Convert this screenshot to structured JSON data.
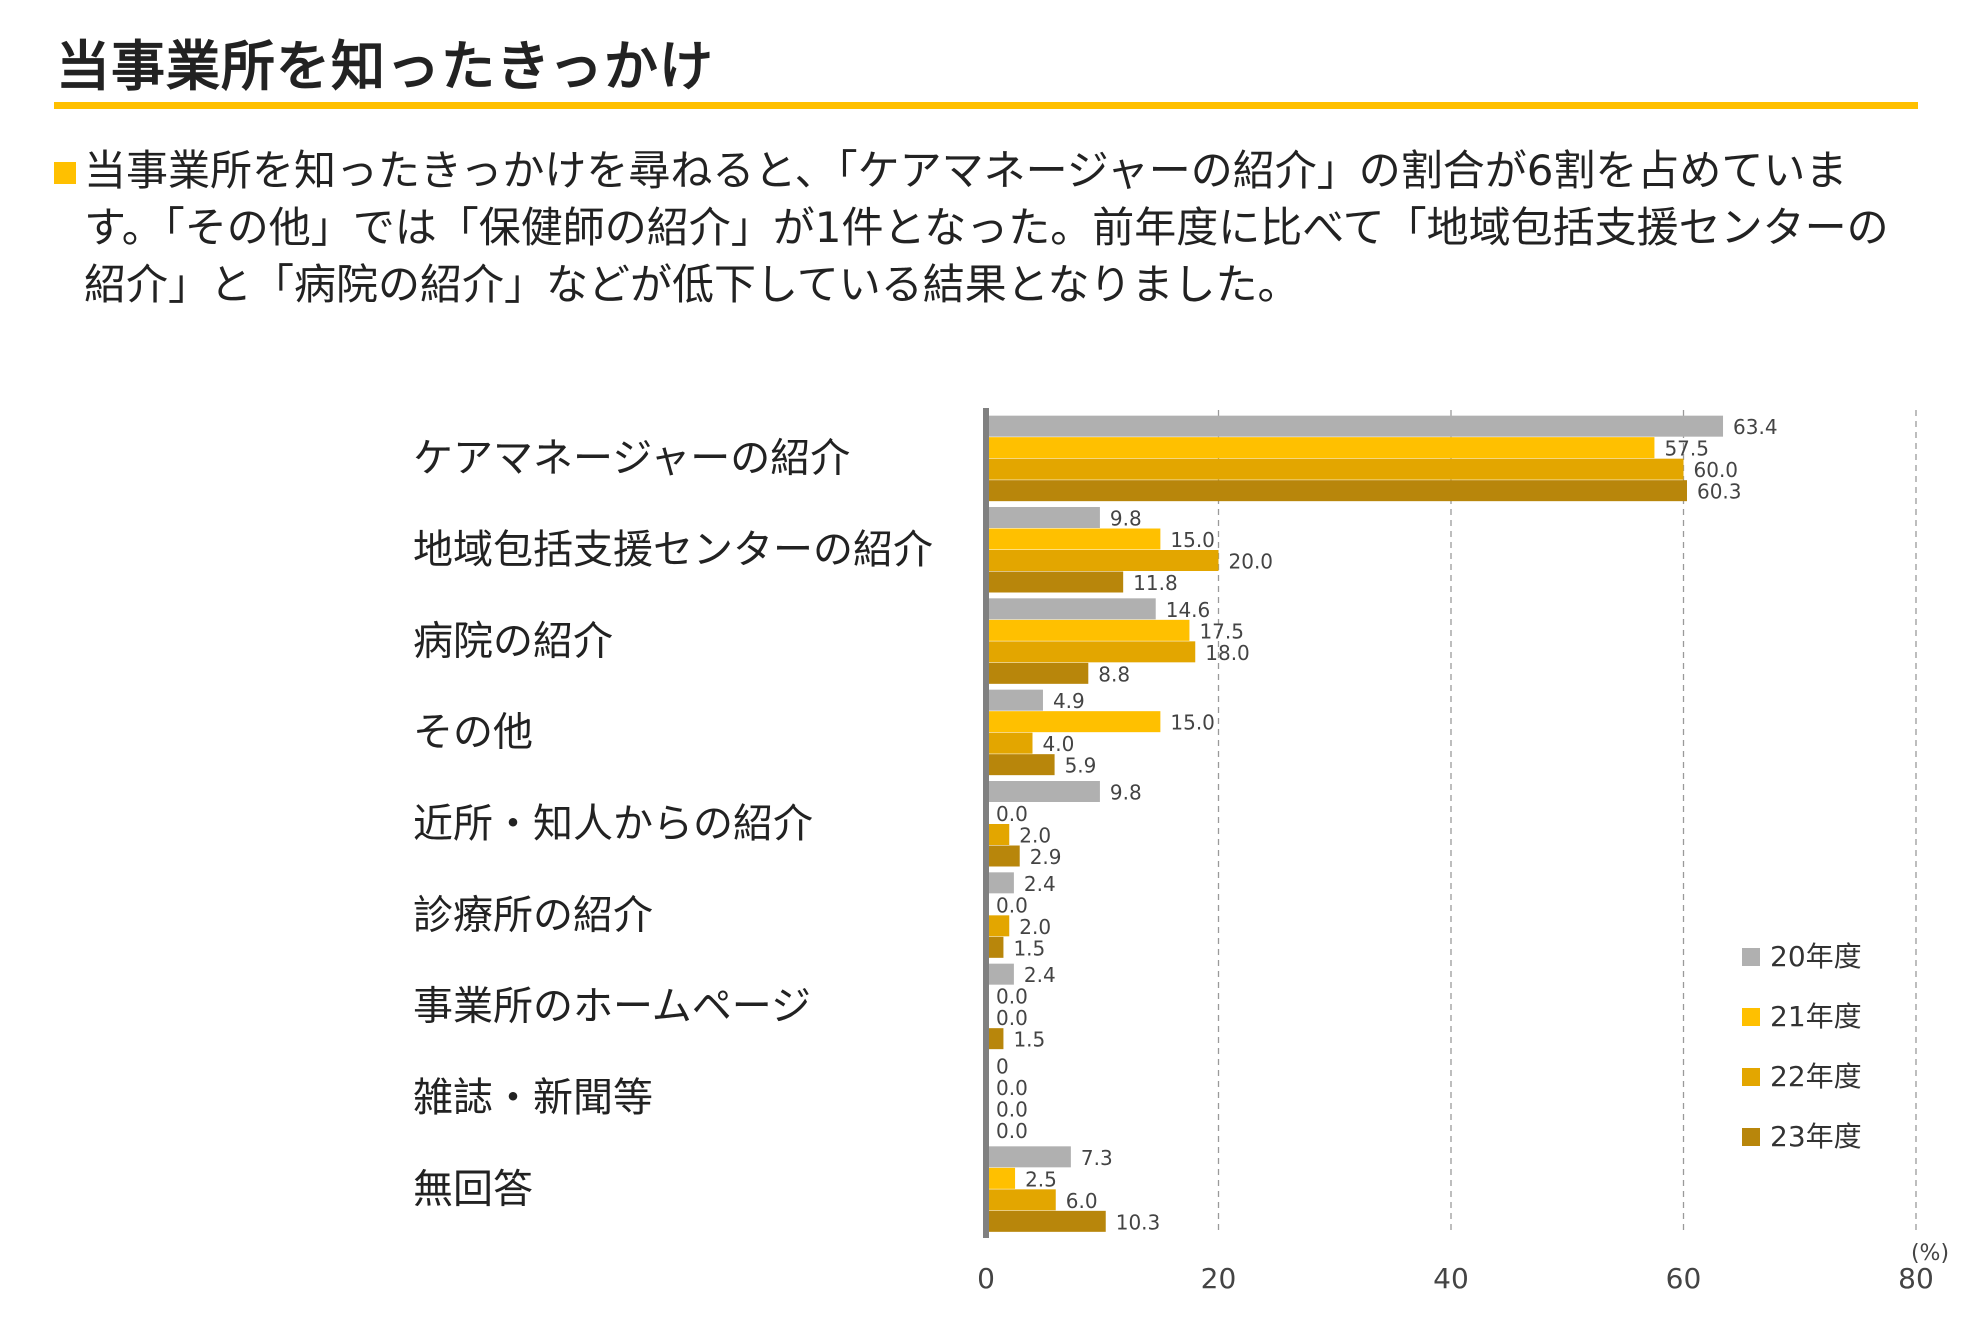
{
  "page": {
    "title": "当事業所を知ったきっかけ",
    "summary": "当事業所を知ったきっかけを尋ねると、「ケアマネージャーの紹介」の割合が6割を占めています。「その他」では「保健師の紹介」が1件となった。前年度に比べて「地域包括支援センターの紹介」と「病院の紹介」などが低下している結果となりました。",
    "accent_color": "#FFC000"
  },
  "chart_data": {
    "type": "bar",
    "orientation": "horizontal",
    "unit": "(%)",
    "xlim": [
      0,
      80
    ],
    "x_ticks": [
      "0",
      "20",
      "40",
      "60",
      "80"
    ],
    "grid": "vertical dashed",
    "legend_position": "bottom-right",
    "categories": [
      "ケアマネージャーの紹介",
      "地域包括支援センターの紹介",
      "病院の紹介",
      "その他",
      "近所・知人からの紹介",
      "診療所の紹介",
      "事業所のホームページ",
      "雑誌・新聞等",
      "無回答"
    ],
    "series": [
      {
        "name": "20年度",
        "color": "#B0B0B0",
        "values": [
          63.4,
          9.8,
          14.6,
          4.9,
          9.8,
          2.4,
          2.4,
          0,
          7.3
        ],
        "labels": [
          "63.4",
          "9.8",
          "14.6",
          "4.9",
          "9.8",
          "2.4",
          "2.4",
          "0",
          "7.3"
        ]
      },
      {
        "name": "21年度",
        "color": "#FFC000",
        "values": [
          57.5,
          15.0,
          17.5,
          15.0,
          0.0,
          0.0,
          0.0,
          0.0,
          2.5
        ],
        "labels": [
          "57.5",
          "15.0",
          "17.5",
          "15.0",
          "0.0",
          "0.0",
          "0.0",
          "0.0",
          "2.5"
        ]
      },
      {
        "name": "22年度",
        "color": "#E3A600",
        "values": [
          60.0,
          20.0,
          18.0,
          4.0,
          2.0,
          2.0,
          0.0,
          0.0,
          6.0
        ],
        "labels": [
          "60.0",
          "20.0",
          "18.0",
          "4.0",
          "2.0",
          "2.0",
          "0.0",
          "0.0",
          "6.0"
        ]
      },
      {
        "name": "23年度",
        "color": "#B8860B",
        "values": [
          60.3,
          11.8,
          8.8,
          5.9,
          2.9,
          1.5,
          1.5,
          0.0,
          10.3
        ],
        "labels": [
          "60.3",
          "11.8",
          "8.8",
          "5.9",
          "2.9",
          "1.5",
          "1.5",
          "0.0",
          "10.3"
        ]
      }
    ]
  }
}
